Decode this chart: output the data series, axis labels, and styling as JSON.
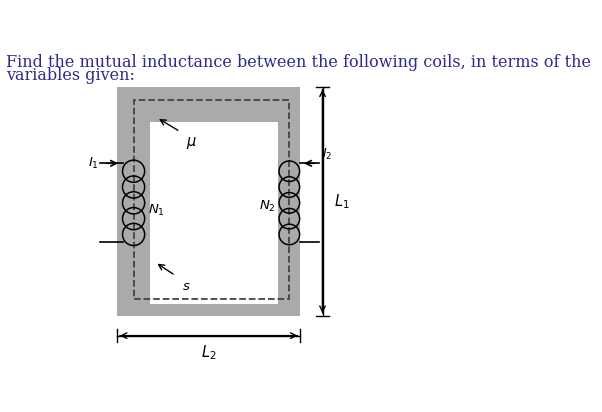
{
  "title_text": "Find the mutual inductance between the following coils, in terms of the\nvariables given:",
  "title_color": "#2c2c8c",
  "title_fontsize": 11.5,
  "bg_color": "#ffffff",
  "core_color": "#aaaaaa",
  "fig_w": 6.02,
  "fig_h": 4.12,
  "label_fontsize": 9.5
}
